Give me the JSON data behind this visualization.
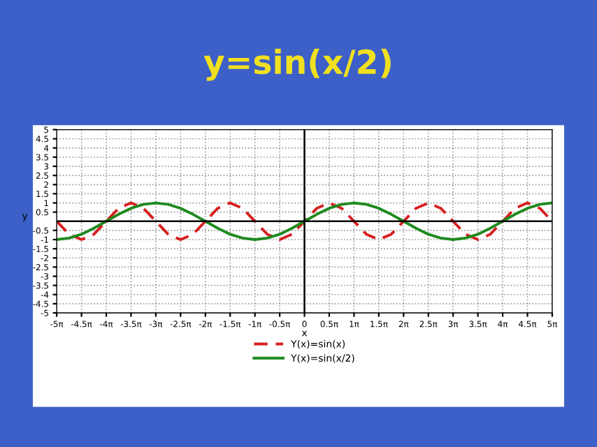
{
  "chart_data": {
    "type": "line",
    "title": "y=sin(x/2)",
    "x": [
      -15.708,
      -14.9226,
      -14.1372,
      -13.3518,
      -12.5664,
      -11.781,
      -10.9956,
      -10.2102,
      -9.4248,
      -8.6394,
      -7.854,
      -7.0686,
      -6.2832,
      -5.4978,
      -4.7124,
      -3.927,
      -3.1416,
      -2.3562,
      -1.5708,
      -0.7854,
      0,
      0.7854,
      1.5708,
      2.3562,
      3.1416,
      3.927,
      4.7124,
      5.4978,
      6.2832,
      7.0686,
      7.854,
      8.6394,
      9.4248,
      10.2102,
      10.9956,
      11.781,
      12.5664,
      13.3518,
      14.1372,
      14.9226,
      15.708
    ],
    "series": [
      {
        "name": "Y(x)=sin(x)",
        "color": "#d62020",
        "line_style": "dashed",
        "values": [
          0,
          -0.71,
          -1,
          -0.71,
          0,
          0.71,
          1,
          0.71,
          0,
          -0.71,
          -1,
          -0.71,
          0,
          0.71,
          1,
          0.71,
          0,
          -0.71,
          -1,
          -0.71,
          0,
          0.71,
          1,
          0.71,
          0,
          -0.71,
          -1,
          -0.71,
          0,
          0.71,
          1,
          0.71,
          0,
          -0.71,
          -1,
          -0.71,
          0,
          0.71,
          1,
          0.71,
          0
        ]
      },
      {
        "name": "Y(x)=sin(x/2)",
        "color": "#1e8a1e",
        "line_style": "solid",
        "values": [
          -1,
          -0.92,
          -0.71,
          -0.38,
          0,
          0.38,
          0.71,
          0.92,
          1,
          0.92,
          0.71,
          0.38,
          0,
          -0.38,
          -0.71,
          -0.92,
          -1,
          -0.92,
          -0.71,
          -0.38,
          0,
          0.38,
          0.71,
          0.92,
          1,
          0.92,
          0.71,
          0.38,
          0,
          -0.38,
          -0.71,
          -0.92,
          -1,
          -0.92,
          -0.71,
          -0.38,
          0,
          0.38,
          0.71,
          0.92,
          1
        ]
      }
    ],
    "xlim": [
      -15.708,
      15.708
    ],
    "xticks": [
      {
        "value": -15.708,
        "label": "-5π"
      },
      {
        "value": -14.1372,
        "label": "-4.5π"
      },
      {
        "value": -12.5664,
        "label": "-4π"
      },
      {
        "value": -10.9956,
        "label": "-3.5π"
      },
      {
        "value": -9.4248,
        "label": "-3π"
      },
      {
        "value": -7.854,
        "label": "-2.5π"
      },
      {
        "value": -6.2832,
        "label": "-2π"
      },
      {
        "value": -4.7124,
        "label": "-1.5π"
      },
      {
        "value": -3.1416,
        "label": "-1π"
      },
      {
        "value": -1.5708,
        "label": "-0.5π"
      },
      0,
      {
        "value": 1.5708,
        "label": "0.5π"
      },
      {
        "value": 3.1416,
        "label": "1π"
      },
      {
        "value": 4.7124,
        "label": "1.5π"
      },
      {
        "value": 6.2832,
        "label": "2π"
      },
      {
        "value": 7.854,
        "label": "2.5π"
      },
      {
        "value": 9.4248,
        "label": "3π"
      },
      {
        "value": 10.9956,
        "label": "3.5π"
      },
      {
        "value": 12.5664,
        "label": "4π"
      },
      {
        "value": 14.1372,
        "label": "4.5π"
      },
      {
        "value": 15.708,
        "label": "5π"
      }
    ],
    "ylim": [
      -5,
      5
    ],
    "yticks": [
      -5,
      -4.5,
      -4,
      -3.5,
      -3,
      -2.5,
      -2,
      -1.5,
      -1,
      -0.5,
      0.5,
      1,
      1.5,
      2,
      2.5,
      3,
      3.5,
      4,
      4.5,
      5
    ],
    "xlabel": "x",
    "ylabel": "y",
    "grid": true,
    "legend": "bottom"
  }
}
